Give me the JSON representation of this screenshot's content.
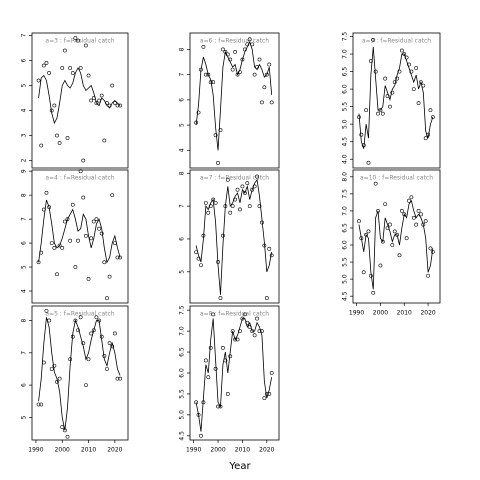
{
  "xlabel": "Year",
  "chart_data": [
    {
      "type": "line",
      "annotation": "a=3  :  f=Residual catch",
      "x": [
        1991,
        1992,
        1993,
        1994,
        1995,
        1996,
        1997,
        1998,
        1999,
        2000,
        2001,
        2002,
        2003,
        2004,
        2005,
        2006,
        2007,
        2008,
        2009,
        2010,
        2011,
        2012,
        2013,
        2014,
        2015,
        2016,
        2017,
        2018,
        2019,
        2020,
        2021,
        2022
      ],
      "observed": [
        5.2,
        2.6,
        5.8,
        5.9,
        5.5,
        4.0,
        4.2,
        3.0,
        2.7,
        5.7,
        6.4,
        2.9,
        5.7,
        5.5,
        6.9,
        6.8,
        5.7,
        2.0,
        6.6,
        5.4,
        4.4,
        4.5,
        4.3,
        4.4,
        4.6,
        2.8,
        4.3,
        4.2,
        5.0,
        4.3,
        4.2,
        4.2
      ],
      "fitted": [
        4.5,
        5.3,
        5.4,
        5.2,
        4.6,
        3.9,
        3.5,
        3.7,
        4.3,
        5.0,
        5.2,
        5.0,
        4.9,
        5.1,
        5.5,
        5.7,
        5.5,
        5.0,
        4.8,
        4.9,
        5.0,
        4.7,
        4.3,
        4.2,
        4.5,
        4.4,
        4.2,
        4.1,
        4.3,
        4.4,
        4.3,
        4.2
      ],
      "xlim": [
        1988.5,
        2025
      ],
      "ylim": [
        1.7,
        7.1
      ],
      "yticks": [
        2,
        3,
        4,
        5,
        6,
        7
      ]
    },
    {
      "type": "line",
      "annotation": "a=4  :  f=Residual catch",
      "x": [
        1991,
        1992,
        1993,
        1994,
        1995,
        1996,
        1997,
        1998,
        1999,
        2000,
        2001,
        2002,
        2003,
        2004,
        2005,
        2006,
        2007,
        2008,
        2009,
        2010,
        2011,
        2012,
        2013,
        2014,
        2015,
        2016,
        2017,
        2018,
        2019,
        2020,
        2021,
        2022
      ],
      "observed": [
        5.2,
        5.6,
        7.4,
        8.1,
        7.5,
        6.0,
        5.8,
        4.7,
        5.9,
        5.8,
        6.9,
        7.0,
        6.1,
        7.6,
        5.0,
        6.1,
        9.0,
        7.9,
        6.3,
        4.5,
        6.2,
        6.9,
        7.0,
        6.6,
        6.4,
        5.2,
        3.7,
        4.6,
        8.0,
        6.0,
        5.4,
        5.4
      ],
      "fitted": [
        5.2,
        6.0,
        7.0,
        7.8,
        7.5,
        6.8,
        6.0,
        5.8,
        5.9,
        6.2,
        6.6,
        7.0,
        7.2,
        7.4,
        7.0,
        6.5,
        6.6,
        7.2,
        7.0,
        6.3,
        5.8,
        6.2,
        6.8,
        7.0,
        6.6,
        5.8,
        5.2,
        5.4,
        6.0,
        6.3,
        5.8,
        5.4
      ],
      "xlim": [
        1988.5,
        2025
      ],
      "ylim": [
        3.5,
        9.05
      ],
      "yticks": [
        4,
        5,
        6,
        7,
        8,
        9
      ]
    },
    {
      "type": "line",
      "annotation": "a=5  :  f=Residual catch",
      "x": [
        1991,
        1992,
        1993,
        1994,
        1995,
        1996,
        1997,
        1998,
        1999,
        2000,
        2001,
        2002,
        2003,
        2004,
        2005,
        2006,
        2007,
        2008,
        2009,
        2010,
        2011,
        2012,
        2013,
        2014,
        2015,
        2016,
        2017,
        2018,
        2019,
        2020,
        2021,
        2022
      ],
      "observed": [
        5.4,
        5.4,
        6.7,
        8.3,
        8.0,
        6.5,
        6.6,
        6.1,
        6.2,
        4.7,
        4.6,
        4.4,
        6.8,
        7.5,
        8.0,
        7.7,
        8.1,
        7.3,
        6.0,
        6.8,
        7.6,
        7.7,
        8.1,
        8.0,
        7.5,
        6.9,
        6.5,
        7.3,
        7.2,
        7.6,
        6.2,
        6.2
      ],
      "fitted": [
        5.5,
        6.2,
        7.3,
        8.1,
        7.8,
        7.0,
        6.4,
        6.2,
        5.8,
        5.0,
        4.6,
        5.3,
        6.6,
        7.6,
        8.0,
        7.8,
        7.5,
        7.2,
        6.8,
        7.0,
        7.4,
        7.7,
        8.0,
        8.0,
        7.4,
        6.8,
        6.6,
        7.0,
        7.3,
        7.0,
        6.5,
        6.3
      ],
      "xlim": [
        1988.5,
        2025
      ],
      "ylim": [
        4.3,
        8.45
      ],
      "yticks": [
        5,
        6,
        7,
        8
      ],
      "xticks": [
        1990,
        2000,
        2010,
        2020
      ]
    },
    {
      "type": "line",
      "annotation": "a=6  :  f=Residual catch",
      "x": [
        1991,
        1992,
        1993,
        1994,
        1995,
        1996,
        1997,
        1998,
        1999,
        2000,
        2001,
        2002,
        2003,
        2004,
        2005,
        2006,
        2007,
        2008,
        2009,
        2010,
        2011,
        2012,
        2013,
        2014,
        2015,
        2016,
        2017,
        2018,
        2019,
        2020,
        2021,
        2022
      ],
      "observed": [
        5.1,
        5.5,
        7.2,
        8.1,
        7.0,
        7.0,
        6.7,
        6.7,
        4.6,
        3.5,
        4.8,
        8.0,
        7.9,
        7.8,
        7.6,
        7.2,
        7.9,
        7.0,
        7.1,
        7.6,
        8.0,
        8.2,
        8.4,
        8.2,
        7.0,
        7.3,
        7.6,
        5.9,
        6.5,
        7.0,
        7.4,
        5.9
      ],
      "fitted": [
        5.0,
        5.8,
        7.2,
        7.7,
        7.4,
        7.0,
        6.8,
        6.2,
        4.9,
        4.0,
        5.6,
        7.3,
        7.9,
        7.7,
        7.5,
        7.3,
        7.4,
        7.0,
        7.2,
        7.6,
        7.9,
        8.1,
        8.3,
        8.0,
        7.3,
        7.2,
        7.4,
        7.2,
        6.9,
        7.0,
        7.3,
        6.2
      ],
      "xlim": [
        1988.5,
        2025
      ],
      "ylim": [
        3.3,
        8.65
      ],
      "yticks": [
        4,
        5,
        6,
        7,
        8
      ]
    },
    {
      "type": "line",
      "annotation": "a=7  :  f=Residual catch",
      "x": [
        1991,
        1992,
        1993,
        1994,
        1995,
        1996,
        1997,
        1998,
        1999,
        2000,
        2001,
        2002,
        2003,
        2004,
        2005,
        2006,
        2007,
        2008,
        2009,
        2010,
        2011,
        2012,
        2013,
        2014,
        2015,
        2016,
        2017,
        2018,
        2019,
        2020,
        2021,
        2022
      ],
      "observed": [
        5.6,
        5.4,
        5.2,
        6.1,
        7.1,
        6.8,
        7.0,
        7.2,
        7.1,
        5.3,
        4.2,
        6.1,
        7.0,
        7.8,
        6.8,
        7.0,
        7.2,
        7.5,
        6.9,
        7.6,
        7.4,
        7.7,
        7.0,
        7.5,
        7.6,
        7.9,
        7.0,
        6.5,
        5.8,
        4.2,
        5.7,
        5.5
      ],
      "fitted": [
        5.8,
        5.5,
        5.3,
        6.0,
        7.0,
        6.9,
        7.1,
        7.2,
        6.5,
        5.2,
        4.3,
        5.8,
        7.0,
        7.6,
        7.0,
        7.1,
        7.3,
        7.4,
        7.1,
        7.5,
        7.4,
        7.6,
        7.2,
        7.5,
        7.7,
        7.8,
        7.3,
        6.6,
        5.9,
        5.0,
        5.2,
        5.6
      ],
      "xlim": [
        1988.5,
        2025
      ],
      "ylim": [
        4.05,
        8.1
      ],
      "yticks": [
        5,
        6,
        7,
        8
      ]
    },
    {
      "type": "line",
      "annotation": "a=8  :  f=Residual catch",
      "x": [
        1991,
        1992,
        1993,
        1994,
        1995,
        1996,
        1997,
        1998,
        1999,
        2000,
        2001,
        2002,
        2003,
        2004,
        2005,
        2006,
        2007,
        2008,
        2009,
        2010,
        2011,
        2012,
        2013,
        2014,
        2015,
        2016,
        2017,
        2018,
        2019,
        2020,
        2021,
        2022
      ],
      "observed": [
        5.3,
        5.0,
        4.5,
        5.3,
        6.3,
        5.9,
        6.6,
        7.4,
        6.1,
        5.2,
        5.2,
        6.6,
        6.3,
        5.5,
        6.4,
        7.0,
        6.8,
        6.8,
        7.0,
        7.3,
        7.4,
        7.2,
        7.1,
        7.0,
        6.9,
        7.3,
        7.0,
        7.0,
        5.4,
        5.5,
        5.5,
        6.0
      ],
      "fitted": [
        5.3,
        5.0,
        4.6,
        5.4,
        6.2,
        6.0,
        6.8,
        7.3,
        6.3,
        5.3,
        5.2,
        6.2,
        6.5,
        6.0,
        6.5,
        7.0,
        6.8,
        6.9,
        7.1,
        7.3,
        7.3,
        7.1,
        7.2,
        7.0,
        7.0,
        7.2,
        7.1,
        6.9,
        5.8,
        5.4,
        5.6,
        5.9
      ],
      "xlim": [
        1988.5,
        2025
      ],
      "ylim": [
        4.4,
        7.6
      ],
      "yticks": [
        4.5,
        {
          "value": 5,
          "label": "5.0"
        },
        5.5,
        {
          "value": 6,
          "label": "6.0"
        },
        6.5,
        {
          "value": 7,
          "label": "7.0"
        },
        7.5
      ],
      "xticks": [
        1990,
        2000,
        2010,
        2020
      ]
    },
    {
      "type": "line",
      "annotation": "a=9  :  f=Residual catch",
      "x": [
        1991,
        1992,
        1993,
        1994,
        1995,
        1996,
        1997,
        1998,
        1999,
        2000,
        2001,
        2002,
        2003,
        2004,
        2005,
        2006,
        2007,
        2008,
        2009,
        2010,
        2011,
        2012,
        2013,
        2014,
        2015,
        2016,
        2017,
        2018,
        2019,
        2020,
        2021,
        2022
      ],
      "observed": [
        5.2,
        4.7,
        4.4,
        5.4,
        3.9,
        6.8,
        7.4,
        6.5,
        5.3,
        5.4,
        5.3,
        6.3,
        5.8,
        5.5,
        5.9,
        6.2,
        6.3,
        6.5,
        7.1,
        7.0,
        6.9,
        6.7,
        6.5,
        6.0,
        6.6,
        5.6,
        6.2,
        6.1,
        4.6,
        4.7,
        5.4,
        5.2
      ],
      "fitted": [
        5.3,
        4.5,
        4.3,
        5.0,
        4.6,
        6.4,
        7.2,
        6.3,
        5.4,
        5.4,
        5.5,
        6.1,
        5.9,
        5.7,
        6.0,
        6.1,
        6.4,
        6.6,
        7.0,
        7.0,
        6.8,
        6.6,
        6.4,
        6.2,
        6.4,
        6.0,
        6.2,
        5.9,
        4.8,
        4.6,
        5.0,
        5.2
      ],
      "xlim": [
        1988.5,
        2025
      ],
      "ylim": [
        3.75,
        7.6
      ],
      "yticks": [
        {
          "value": 4,
          "label": "4.0"
        },
        4.5,
        {
          "value": 5,
          "label": "5.0"
        },
        5.5,
        {
          "value": 6,
          "label": "6.0"
        },
        6.5,
        {
          "value": 7,
          "label": "7.0"
        },
        7.5
      ]
    },
    {
      "type": "line",
      "annotation": "a=10  :  f=Residual catch",
      "x": [
        1991,
        1992,
        1993,
        1994,
        1995,
        1996,
        1997,
        1998,
        1999,
        2000,
        2001,
        2002,
        2003,
        2004,
        2005,
        2006,
        2007,
        2008,
        2009,
        2010,
        2011,
        2012,
        2013,
        2014,
        2015,
        2016,
        2017,
        2018,
        2019,
        2020,
        2021,
        2022
      ],
      "observed": [
        6.7,
        6.2,
        5.2,
        6.3,
        6.4,
        5.1,
        4.6,
        7.8,
        7.0,
        5.4,
        6.1,
        7.2,
        6.5,
        6.6,
        6.0,
        6.4,
        6.3,
        5.7,
        7.0,
        6.9,
        6.2,
        7.3,
        7.4,
        6.8,
        6.6,
        7.0,
        6.9,
        6.6,
        6.7,
        5.1,
        5.9,
        5.8
      ],
      "fitted": [
        6.6,
        6.2,
        5.8,
        6.3,
        6.2,
        5.2,
        4.7,
        6.8,
        7.0,
        6.2,
        6.1,
        6.8,
        6.6,
        6.4,
        6.1,
        6.3,
        6.3,
        6.0,
        6.5,
        6.9,
        6.8,
        7.2,
        7.3,
        7.0,
        6.8,
        6.9,
        6.8,
        6.6,
        6.2,
        5.2,
        5.4,
        5.9
      ],
      "xlim": [
        1988.5,
        2025
      ],
      "ylim": [
        4.3,
        8.2
      ],
      "yticks": [
        4.5,
        {
          "value": 5,
          "label": "5.0"
        },
        5.5,
        {
          "value": 6,
          "label": "6.0"
        },
        6.5,
        {
          "value": 7,
          "label": "7.0"
        },
        7.5,
        {
          "value": 8,
          "label": "8.0"
        }
      ],
      "xticks": [
        1990,
        2000,
        2010,
        2020
      ]
    }
  ]
}
